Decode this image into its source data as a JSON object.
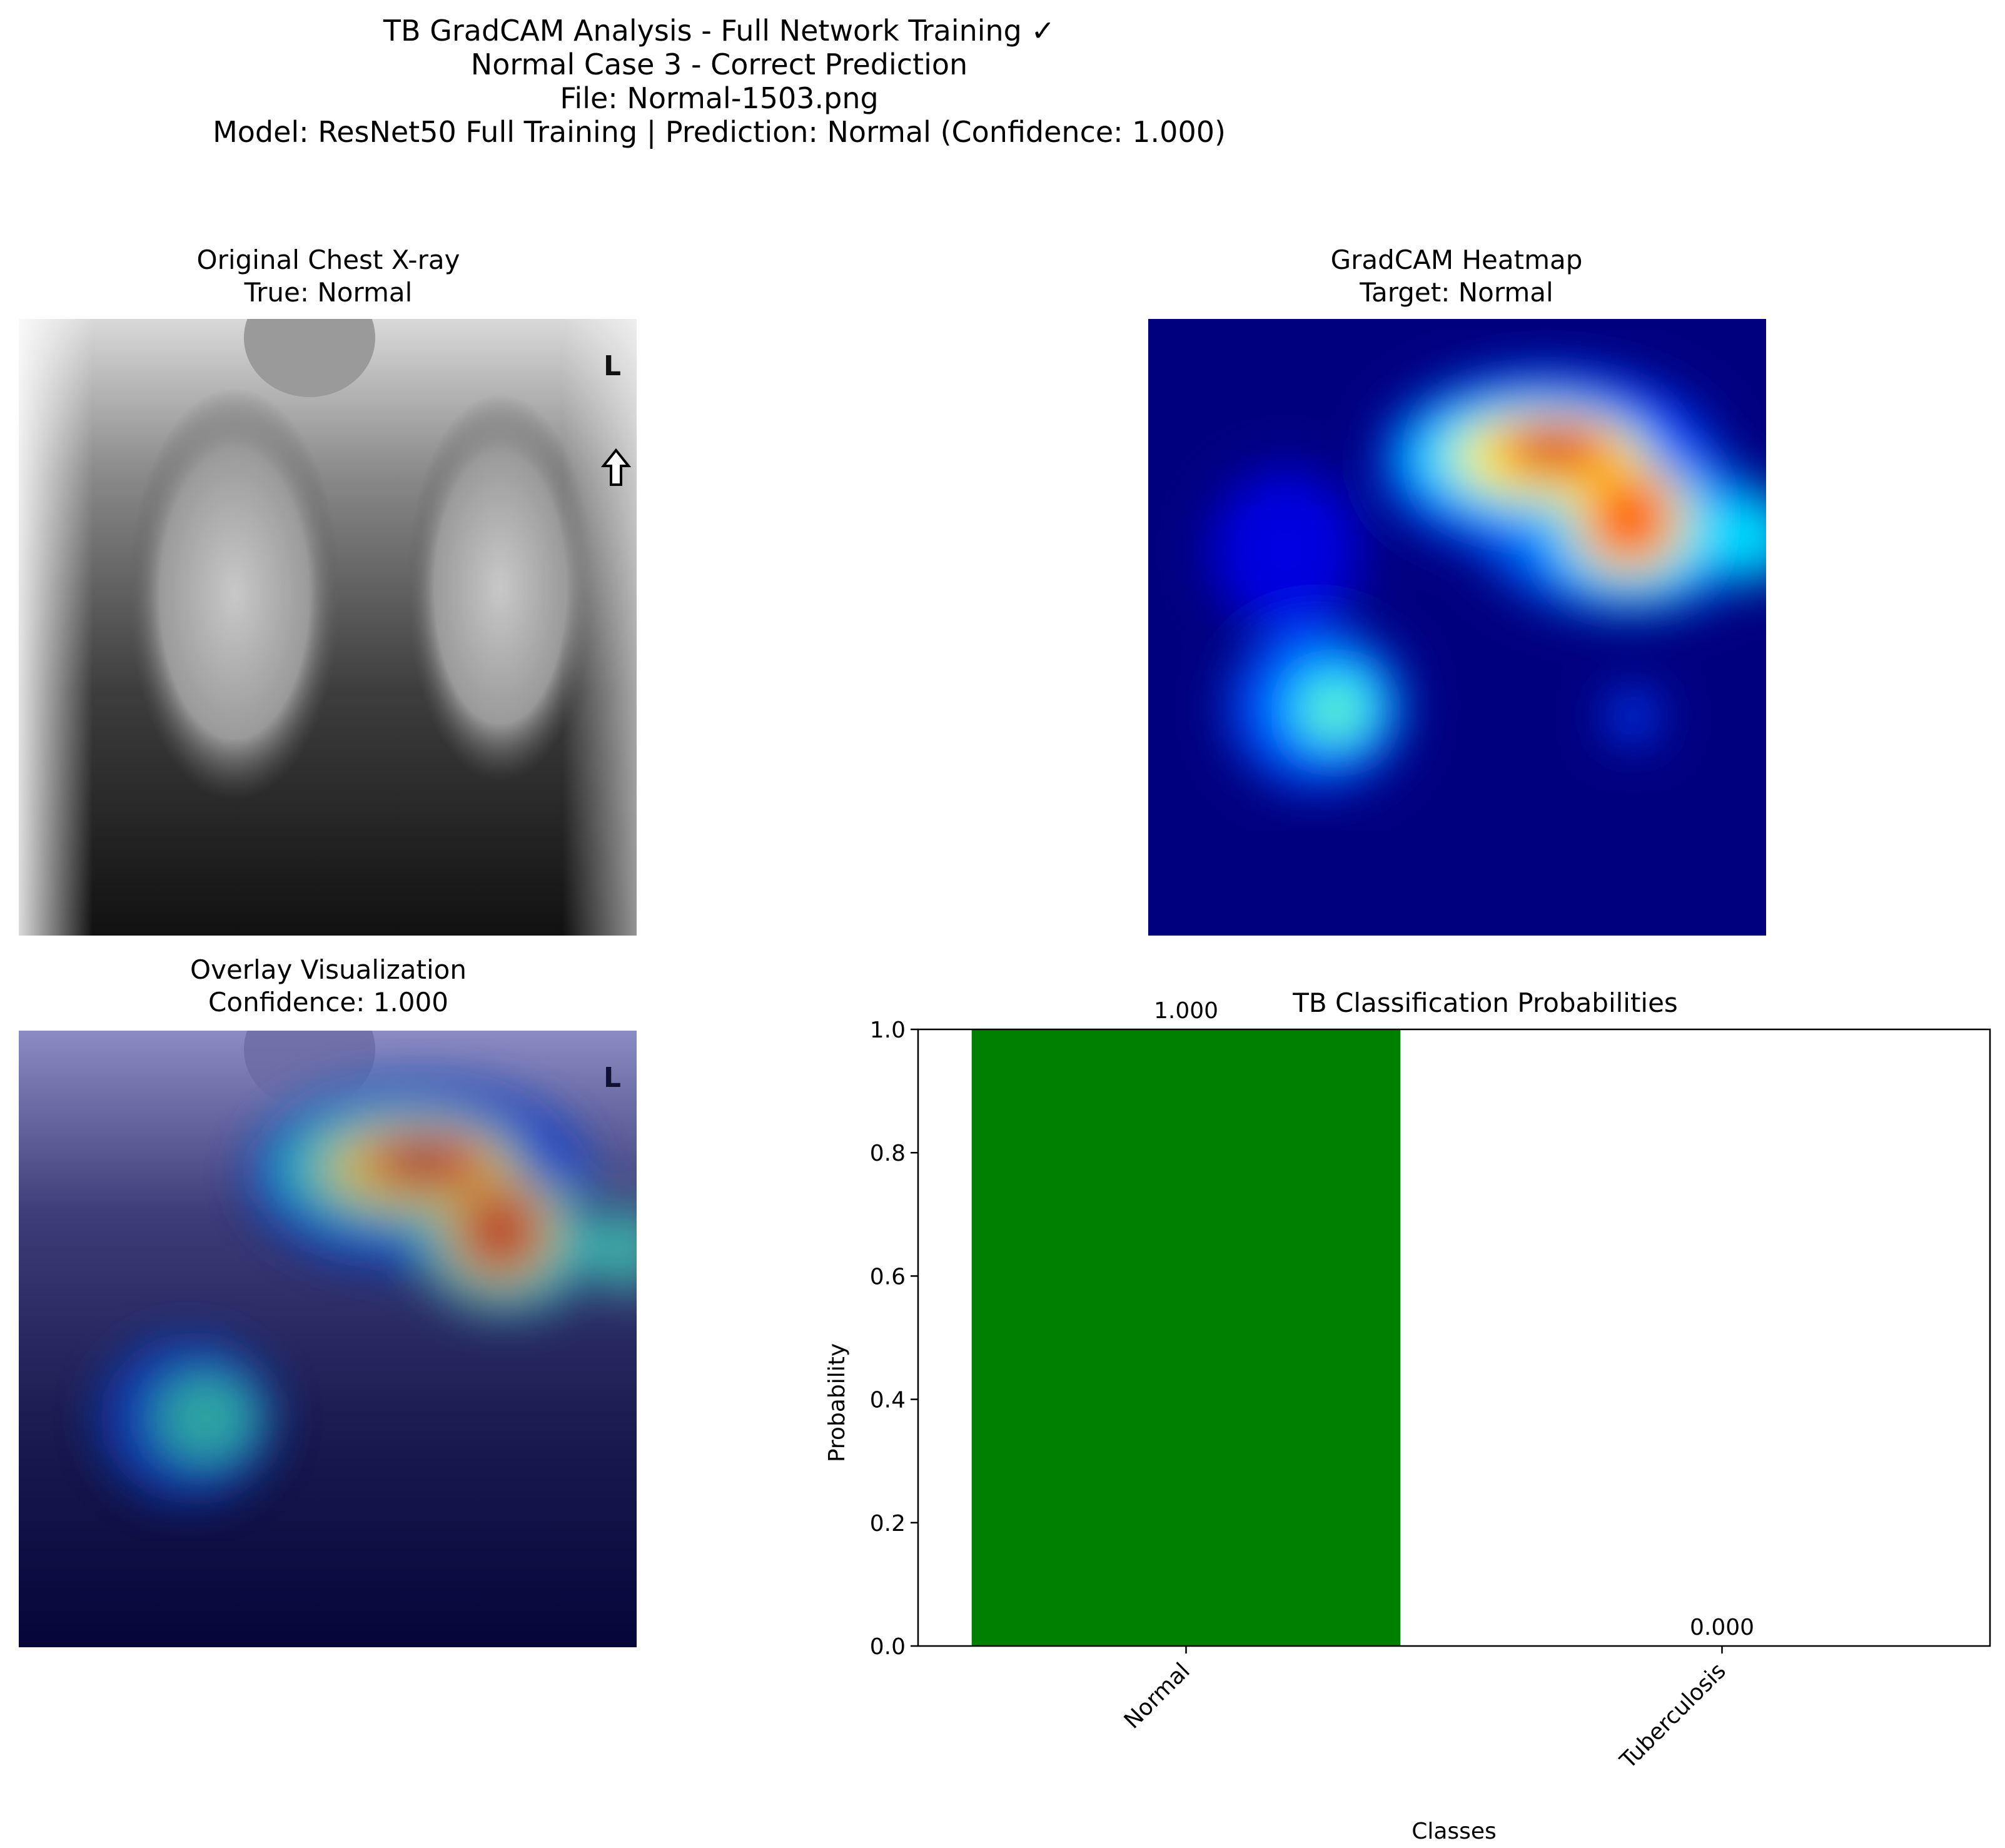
{
  "figure": {
    "title_lines": [
      "TB GradCAM Analysis - Full Network Training ✓",
      "Normal Case 3 - Correct Prediction",
      "File: Normal-1503.png",
      "Model: ResNet50 Full Training | Prediction: Normal (Confidence: 1.000)"
    ]
  },
  "panels": {
    "original": {
      "title": "Original Chest X-ray",
      "subtitle": "True: Normal"
    },
    "heatmap": {
      "title": "GradCAM Heatmap",
      "subtitle": "Target: Normal"
    },
    "overlay": {
      "title": "Overlay Visualization",
      "subtitle": "Confidence: 1.000"
    }
  },
  "chart_data": {
    "type": "bar",
    "title": "TB Classification Probabilities",
    "xlabel": "Classes",
    "ylabel": "Probability",
    "categories": [
      "Normal",
      "Tuberculosis"
    ],
    "values": [
      1.0,
      0.0
    ],
    "value_labels": [
      "1.000",
      "0.000"
    ],
    "colors": [
      "#008000",
      "#ff0000"
    ],
    "ylim": [
      0,
      1.0
    ],
    "yticks": [
      0.0,
      0.2,
      0.4,
      0.6,
      0.8,
      1.0
    ],
    "ytick_labels": [
      "0.0",
      "0.2",
      "0.4",
      "0.6",
      "0.8",
      "1.0"
    ],
    "grid": false,
    "legend": "none"
  }
}
